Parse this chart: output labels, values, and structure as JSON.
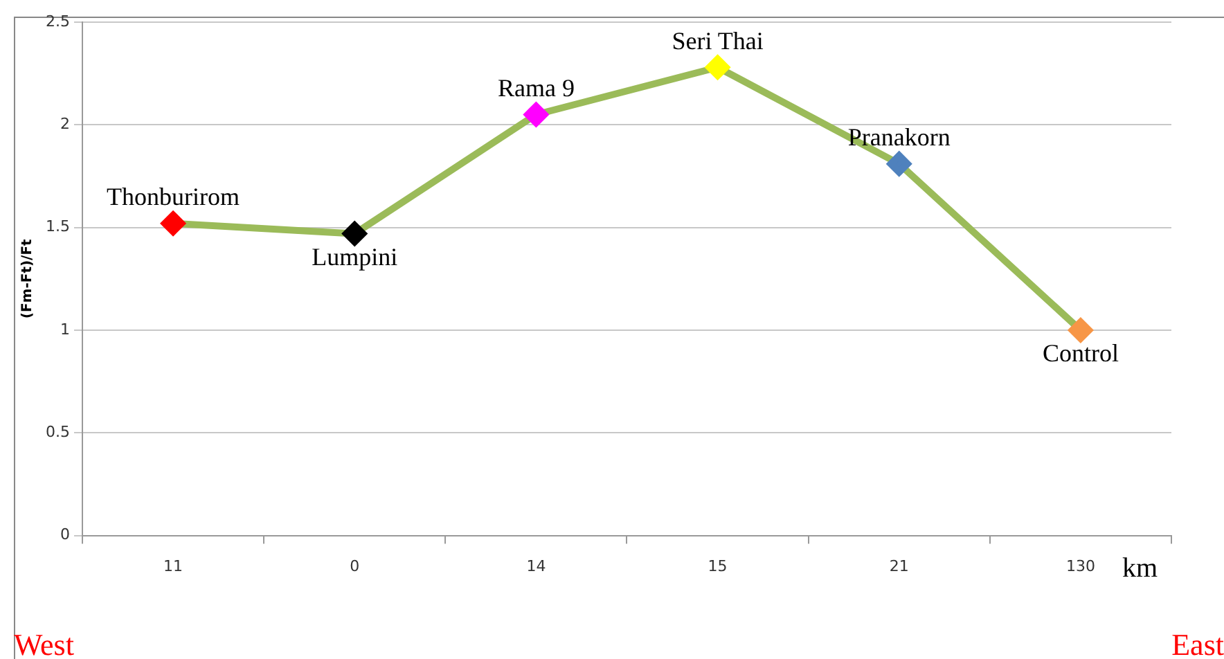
{
  "chart_data": {
    "type": "line",
    "categories": [
      "11",
      "0",
      "14",
      "15",
      "21",
      "130"
    ],
    "series": [
      {
        "color": "#9bbb59",
        "colors": [
          "#ff0000",
          "#000000",
          "#ff00ff",
          "#ffff00",
          "#4f81bd",
          "#f79646"
        ],
        "values": [
          1.52,
          1.47,
          2.05,
          2.28,
          1.81,
          1.0
        ]
      }
    ],
    "ylim": [
      0,
      2.5
    ],
    "yticks": [
      0,
      0.5,
      1,
      1.5,
      2,
      2.5
    ],
    "grid": "y",
    "legend": false,
    "marker": "diamond",
    "line_style": "solid",
    "xlabel": "km",
    "ylabel": "(Fm-Ft)/Ft",
    "annotations": [
      {
        "text": "Thonburirom",
        "x": "11",
        "y": 1.52
      },
      {
        "text": "Lumpini",
        "x": "0",
        "y": 1.47
      },
      {
        "text": "Rama 9",
        "x": "14",
        "y": 2.05
      },
      {
        "text": "Seri Thai",
        "x": "15",
        "y": 2.28
      },
      {
        "text": "Pranakorn",
        "x": "21",
        "y": 1.81
      },
      {
        "text": "Control",
        "x": "130",
        "y": 1.0
      },
      "West",
      "East"
    ]
  }
}
